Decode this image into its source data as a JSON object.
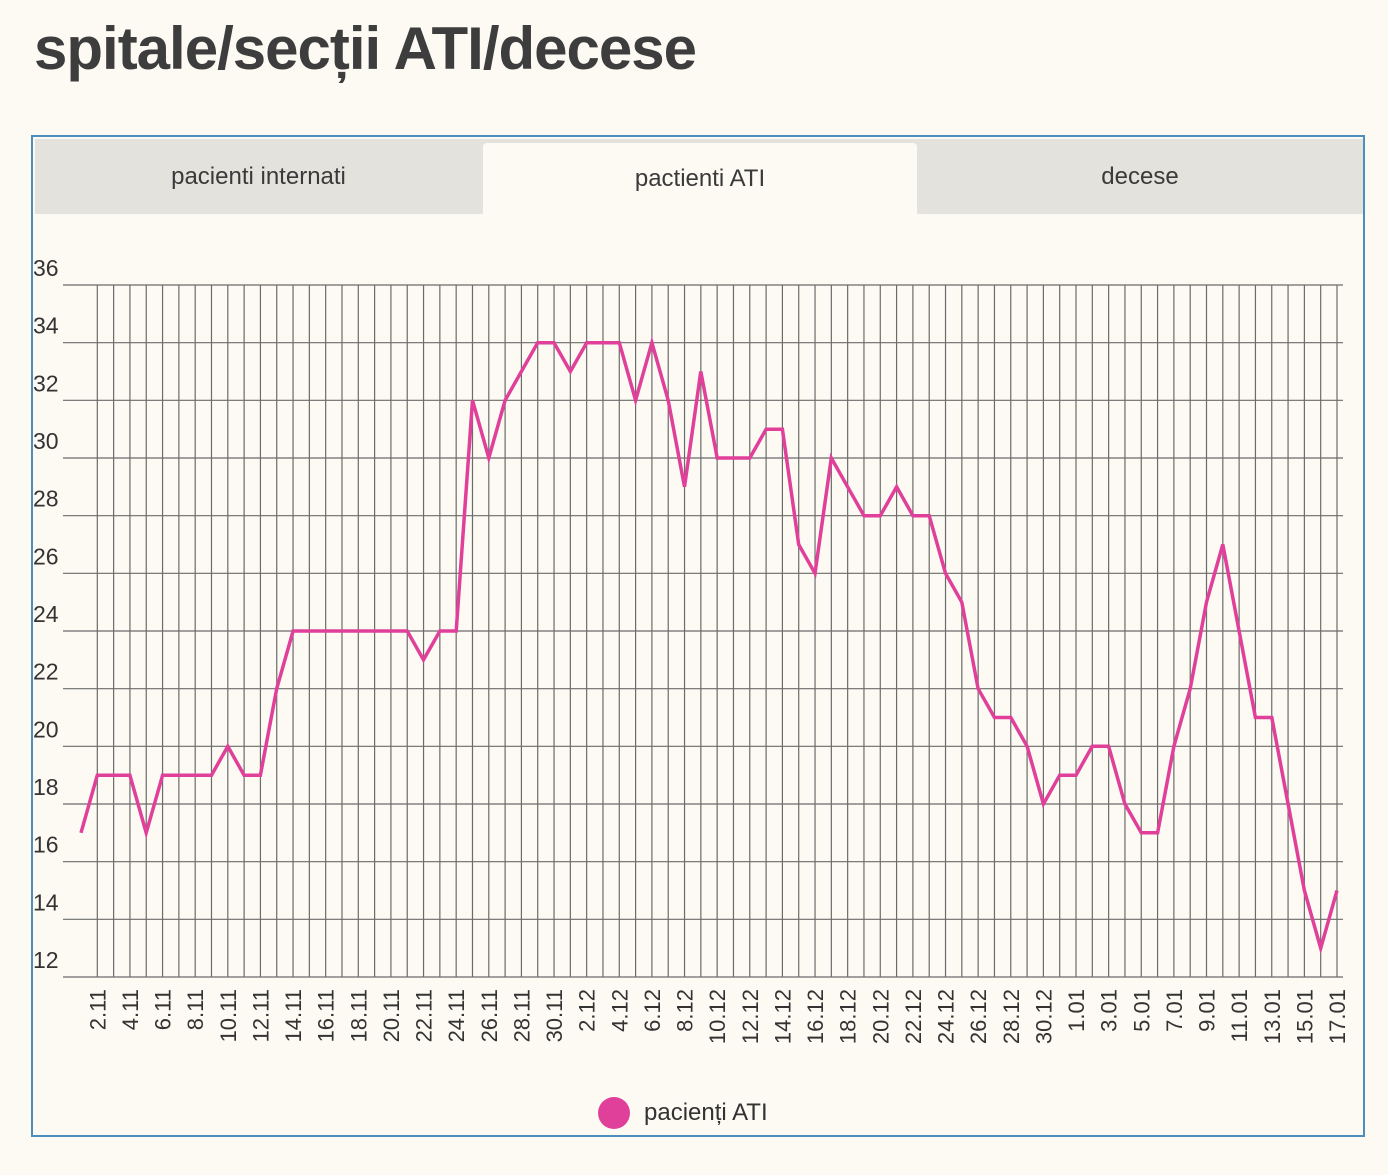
{
  "title": "spitale/secții ATI/decese",
  "tabs": [
    {
      "label": "pacienti internati",
      "active": false
    },
    {
      "label": "pactienti ATI",
      "active": true
    },
    {
      "label": "decese",
      "active": false
    }
  ],
  "colors": {
    "line": "#e0409a",
    "grid": "#6b6b6b",
    "border": "#4b8fc0",
    "background": "#fcfaf3",
    "tab_bar": "#e4e2dd"
  },
  "chart_data": {
    "type": "line",
    "title": "",
    "xlabel": "",
    "ylabel": "",
    "ylim": [
      12,
      36
    ],
    "yticks": [
      12,
      14,
      16,
      18,
      20,
      22,
      24,
      26,
      28,
      30,
      32,
      34,
      36
    ],
    "grid": true,
    "legend_position": "bottom-center",
    "x_tick_labels": [
      "2.11",
      "4.11",
      "6.11",
      "8.11",
      "10.11",
      "12.11",
      "14.11",
      "16.11",
      "18.11",
      "20.11",
      "22.11",
      "24.11",
      "26.11",
      "28.11",
      "30.11",
      "2.12",
      "4.12",
      "6.12",
      "8.12",
      "10.12",
      "12.12",
      "14.12",
      "16.12",
      "18.12",
      "20.12",
      "22.12",
      "24.12",
      "26.12",
      "28.12",
      "30.12",
      "1.01",
      "3.01",
      "5.01",
      "7.01",
      "9.01",
      "11.01",
      "13.01",
      "15.01",
      "17.01"
    ],
    "x": [
      "1.11",
      "2.11",
      "3.11",
      "4.11",
      "5.11",
      "6.11",
      "7.11",
      "8.11",
      "9.11",
      "10.11",
      "11.11",
      "12.11",
      "13.11",
      "14.11",
      "15.11",
      "16.11",
      "17.11",
      "18.11",
      "19.11",
      "20.11",
      "21.11",
      "22.11",
      "23.11",
      "24.11",
      "25.11",
      "26.11",
      "27.11",
      "28.11",
      "29.11",
      "30.11",
      "1.12",
      "2.12",
      "3.12",
      "4.12",
      "5.12",
      "6.12",
      "7.12",
      "8.12",
      "9.12",
      "10.12",
      "11.12",
      "12.12",
      "13.12",
      "14.12",
      "15.12",
      "16.12",
      "17.12",
      "18.12",
      "19.12",
      "20.12",
      "21.12",
      "22.12",
      "23.12",
      "24.12",
      "25.12",
      "26.12",
      "27.12",
      "28.12",
      "29.12",
      "30.12",
      "31.12",
      "1.01",
      "2.01",
      "3.01",
      "4.01",
      "5.01",
      "6.01",
      "7.01",
      "8.01",
      "9.01",
      "10.01",
      "11.01",
      "12.01",
      "13.01",
      "14.01",
      "15.01",
      "16.01",
      "17.01"
    ],
    "series": [
      {
        "name": "pacienți ATI",
        "values": [
          17,
          19,
          19,
          19,
          17,
          19,
          19,
          19,
          19,
          20,
          19,
          19,
          22,
          24,
          24,
          24,
          24,
          24,
          24,
          24,
          24,
          23,
          24,
          24,
          32,
          30,
          32,
          33,
          34,
          34,
          33,
          34,
          34,
          34,
          32,
          34,
          32,
          29,
          33,
          30,
          30,
          30,
          31,
          31,
          27,
          26,
          30,
          29,
          28,
          28,
          29,
          28,
          28,
          26,
          25,
          22,
          21,
          21,
          20,
          18,
          19,
          19,
          20,
          20,
          18,
          17,
          17,
          20,
          22,
          25,
          27,
          24,
          21,
          21,
          18,
          15,
          13,
          15
        ]
      }
    ]
  }
}
